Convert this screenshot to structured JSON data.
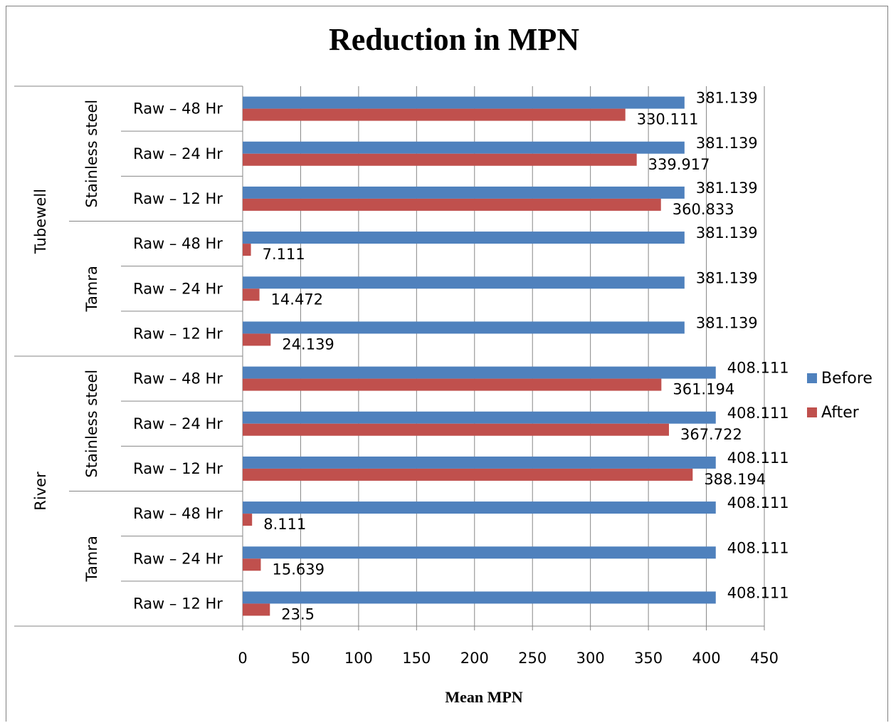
{
  "chart_data": {
    "type": "bar",
    "orientation": "horizontal",
    "title": "Reduction in MPN",
    "xlabel": "Mean MPN",
    "ylabel": "",
    "xlim": [
      0,
      450
    ],
    "x_ticks": [
      "0",
      "50",
      "100",
      "150",
      "200",
      "250",
      "300",
      "350",
      "400",
      "450"
    ],
    "grid": "vertical",
    "legend_position": "right",
    "categories_bottom_to_top": [
      {
        "source": "River",
        "material": "Tamra",
        "time": "Raw – 12 Hr"
      },
      {
        "source": "River",
        "material": "Tamra",
        "time": "Raw – 24 Hr"
      },
      {
        "source": "River",
        "material": "Tamra",
        "time": "Raw – 48 Hr"
      },
      {
        "source": "River",
        "material": "Stainless steel",
        "time": "Raw – 12 Hr"
      },
      {
        "source": "River",
        "material": "Stainless steel",
        "time": "Raw – 24 Hr"
      },
      {
        "source": "River",
        "material": "Stainless steel",
        "time": "Raw – 48 Hr"
      },
      {
        "source": "Tubewell",
        "material": "Tamra",
        "time": "Raw – 12 Hr"
      },
      {
        "source": "Tubewell",
        "material": "Tamra",
        "time": "Raw – 24 Hr"
      },
      {
        "source": "Tubewell",
        "material": "Tamra",
        "time": "Raw – 48 Hr"
      },
      {
        "source": "Tubewell",
        "material": "Stainless steel",
        "time": "Raw – 12 Hr"
      },
      {
        "source": "Tubewell",
        "material": "Stainless steel",
        "time": "Raw – 24 Hr"
      },
      {
        "source": "Tubewell",
        "material": "Stainless steel",
        "time": "Raw – 48 Hr"
      }
    ],
    "series": [
      {
        "name": "Before",
        "color": "#4F81BD",
        "values": [
          408.111,
          408.111,
          408.111,
          408.111,
          408.111,
          408.111,
          381.139,
          381.139,
          381.139,
          381.139,
          381.139,
          381.139
        ],
        "labels": [
          "408.111",
          "408.111",
          "408.111",
          "408.111",
          "408.111",
          "408.111",
          "381.139",
          "381.139",
          "381.139",
          "381.139",
          "381.139",
          "381.139"
        ]
      },
      {
        "name": "After",
        "color": "#C0504D",
        "values": [
          23.5,
          15.639,
          8.111,
          388.194,
          367.722,
          361.194,
          24.139,
          14.472,
          7.111,
          360.833,
          339.917,
          330.111
        ],
        "labels": [
          "23.5",
          "15.639",
          "8.111",
          "388.194",
          "367.722",
          "361.194",
          "24.139",
          "14.472",
          "7.111",
          "360.833",
          "339.917",
          "330.111"
        ]
      }
    ]
  }
}
